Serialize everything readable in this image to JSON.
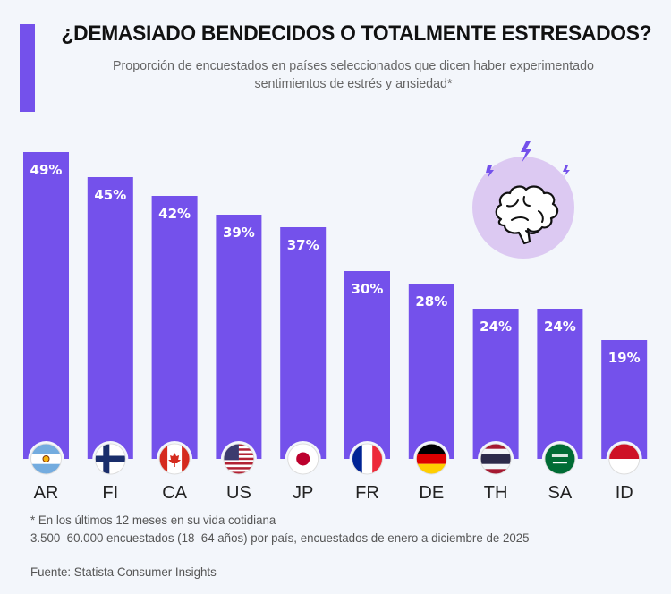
{
  "header": {
    "title": "¿DEMASIADO BENDECIDOS O TOTALMENTE ESTRESADOS?",
    "subtitle_line1": "Proporción de encuestados en países seleccionados que dicen haber experimentado",
    "subtitle_line2": "sentimientos de estrés y ansiedad*"
  },
  "colors": {
    "bar": "#7451eb",
    "accent": "#7451eb",
    "icon_circle": "#dcc9f2"
  },
  "illustration": {
    "icon": "stressed-brain-icon"
  },
  "chart_data": {
    "type": "bar",
    "title": "¿DEMASIADO BENDECIDOS O TOTALMENTE ESTRESADOS?",
    "subtitle": "Proporción de encuestados en países seleccionados que dicen haber experimentado sentimientos de estrés y ansiedad*",
    "xlabel": "",
    "ylabel": "",
    "ylim": [
      0,
      50
    ],
    "grid": false,
    "categories": [
      "AR",
      "FI",
      "CA",
      "US",
      "JP",
      "FR",
      "DE",
      "TH",
      "SA",
      "ID"
    ],
    "values": [
      49,
      45,
      42,
      39,
      37,
      30,
      28,
      24,
      24,
      19
    ],
    "data_labels": [
      "49%",
      "45%",
      "42%",
      "39%",
      "37%",
      "30%",
      "28%",
      "24%",
      "24%",
      "19%"
    ],
    "flags": [
      "argentina-flag",
      "finland-flag",
      "canada-flag",
      "usa-flag",
      "japan-flag",
      "france-flag",
      "germany-flag",
      "thailand-flag",
      "saudi-arabia-flag",
      "indonesia-flag"
    ]
  },
  "footer": {
    "note1": "* En los últimos 12 meses en su vida cotidiana",
    "note2": "3.500–60.000 encuestados (18–64 años) por país, encuestados de enero a diciembre de 2025",
    "source": "Fuente: Statista Consumer Insights"
  }
}
